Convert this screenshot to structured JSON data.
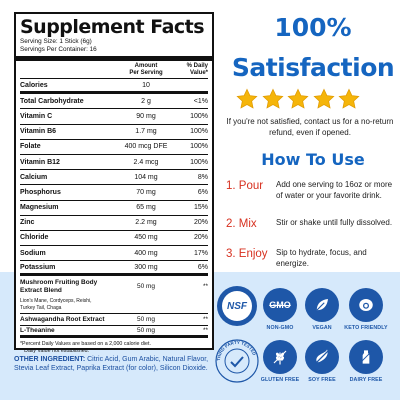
{
  "panel": {
    "title": "Supplement Facts",
    "serving_size": "Serving Size: 1 Stick (6g)",
    "servings_per_container": "Servings Per Container: 16",
    "col_amount_1": "Amount",
    "col_amount_2": "Per Serving",
    "col_dv_1": "% Daily",
    "col_dv_2": "Value*",
    "rows": [
      {
        "name": "Calories",
        "amount": "10",
        "dv": ""
      },
      {
        "name": "Total Carbohydrate",
        "amount": "2 g",
        "dv": "<1%"
      },
      {
        "name": "Vitamin C",
        "amount": "90 mg",
        "dv": "100%"
      },
      {
        "name": "Vitamin B6",
        "amount": "1.7 mg",
        "dv": "100%"
      },
      {
        "name": "Folate",
        "amount": "400 mcg DFE",
        "dv": "100%"
      },
      {
        "name": "Vitamin B12",
        "amount": "2.4 mcg",
        "dv": "100%"
      },
      {
        "name": "Calcium",
        "amount": "104 mg",
        "dv": "8%"
      },
      {
        "name": "Phosphorus",
        "amount": "70 mg",
        "dv": "6%"
      },
      {
        "name": "Magnesium",
        "amount": "65 mg",
        "dv": "15%"
      },
      {
        "name": "Zinc",
        "amount": "2.2 mg",
        "dv": "20%"
      },
      {
        "name": "Chloride",
        "amount": "450 mg",
        "dv": "20%"
      },
      {
        "name": "Sodium",
        "amount": "400 mg",
        "dv": "17%"
      },
      {
        "name": "Potassium",
        "amount": "300 mg",
        "dv": "6%"
      }
    ],
    "blend_name": "Mushroom Fruiting Body Extract Blend",
    "blend_amount": "50 mg",
    "blend_dv": "**",
    "blend_sub": "Lion's Mane, Cordyceps, Reishi, Turkey Tail, Chaga",
    "extra_rows": [
      {
        "name": "Ashwagandha Root Extract",
        "amount": "50 mg",
        "dv": "**"
      },
      {
        "name": "L-Theanine",
        "amount": "50 mg",
        "dv": "**"
      }
    ],
    "footnote_1": "*Percent Daily Values are based on a 2,000 calorie diet.",
    "footnote_2": "**Daily Value not established."
  },
  "other": {
    "label": "OTHER INGREDIENT:",
    "text": "Citric Acid, Gum Arabic, Natural Flavor, Stevia Leaf Extract, Paprika Extract (for color), Silicon Dioxide."
  },
  "right": {
    "pct": "100%",
    "satisfaction": "Satisfaction",
    "stars": 5,
    "guarantee": "If you're not satisfied, contact us for a no-return refund, even if opened.",
    "how_to_use": "How To Use",
    "steps": [
      {
        "label": "1. Pour",
        "desc": "Add one serving to 16oz or more of water or your favorite drink."
      },
      {
        "label": "2. Mix",
        "desc": "Stir or shake until fully dissolved."
      },
      {
        "label": "3. Enjoy",
        "desc": "Sip to hydrate, focus, and energize."
      }
    ]
  },
  "badges": {
    "nsf": "NSF",
    "non_gmo_logo": "GMO",
    "non_gmo": "NON-GMO",
    "vegan": "VEGAN",
    "keto": "KETO FRIENDLY",
    "gluten_free": "GLUTEN FREE",
    "soy_free": "SOY FREE",
    "dairy_free": "DAIRY FREE",
    "third_party": "THIRD PARTY TESTED"
  },
  "colors": {
    "accent_blue": "#1565c0",
    "step_red": "#d7301f",
    "badge_blue": "#1e57a8",
    "bottom_bg": "#d6e9fb",
    "star_gold": "#f5b50a"
  }
}
